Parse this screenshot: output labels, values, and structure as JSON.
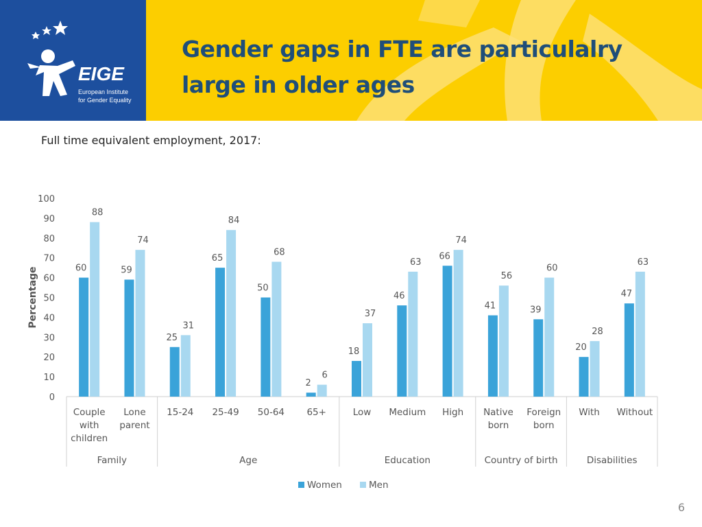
{
  "header": {
    "title_line1": "Gender gaps in FTE are particulalry",
    "title_line2": "large in older ages",
    "logo_name": "EIGE",
    "logo_sub1": "European Institute",
    "logo_sub2": "for Gender Equality"
  },
  "subtitle": "Full time equivalent employment, 2017:",
  "page_number": "6",
  "colors": {
    "women": "#3aa3d9",
    "men": "#a8d8f0",
    "header_bg": "#fcce00",
    "logo_bg": "#1d4f9e",
    "title": "#1f4e79"
  },
  "chart_data": {
    "type": "bar",
    "title": "",
    "ylabel": "Percentage",
    "ylim": [
      0,
      100
    ],
    "yticks": [
      "0",
      "10",
      "20",
      "30",
      "40",
      "50",
      "60",
      "70",
      "80",
      "90",
      "100"
    ],
    "categories": [
      [
        "Couple",
        "with",
        "children"
      ],
      [
        "Lone",
        "parent"
      ],
      [
        "15-24"
      ],
      [
        "25-49"
      ],
      [
        "50-64"
      ],
      [
        "65+"
      ],
      [
        "Low"
      ],
      [
        "Medium"
      ],
      [
        "High"
      ],
      [
        "Native",
        "born"
      ],
      [
        "Foreign",
        "born"
      ],
      [
        "With"
      ],
      [
        "Without"
      ]
    ],
    "groups": [
      {
        "label": "Family",
        "start": 0,
        "end": 1
      },
      {
        "label": "Age",
        "start": 2,
        "end": 5
      },
      {
        "label": "Education",
        "start": 6,
        "end": 8
      },
      {
        "label": "Country of birth",
        "start": 9,
        "end": 10
      },
      {
        "label": "Disabilities",
        "start": 11,
        "end": 12
      }
    ],
    "series": [
      {
        "name": "Women",
        "values": [
          60,
          59,
          25,
          65,
          50,
          2,
          18,
          46,
          66,
          41,
          39,
          20,
          47
        ]
      },
      {
        "name": "Men",
        "values": [
          88,
          74,
          31,
          84,
          68,
          6,
          37,
          63,
          74,
          56,
          60,
          28,
          63
        ]
      }
    ],
    "legend": [
      "Women",
      "Men"
    ]
  }
}
